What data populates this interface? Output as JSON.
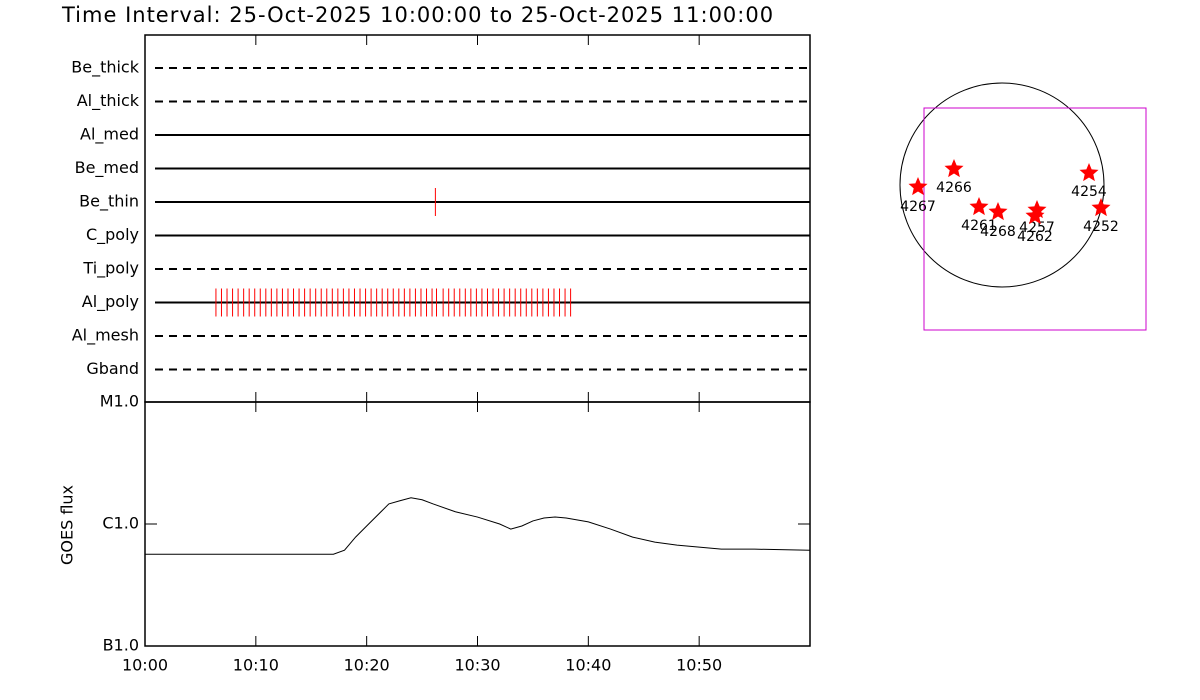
{
  "chart_data": [
    {
      "type": "timeline",
      "title": "Time Interval: 25-Oct-2025 10:00:00 to 25-Oct-2025 11:00:00",
      "xlim": [
        0,
        60
      ],
      "rows": [
        {
          "label": "Be_thick",
          "line": "dashed",
          "x": []
        },
        {
          "label": "Al_thick",
          "line": "dashed",
          "x": []
        },
        {
          "label": "Al_med",
          "line": "solid",
          "x": []
        },
        {
          "label": "Be_med",
          "line": "solid",
          "x": []
        },
        {
          "label": "Be_thin",
          "line": "solid",
          "x": [
            26.2
          ]
        },
        {
          "label": "C_poly",
          "line": "solid",
          "x": []
        },
        {
          "label": "Ti_poly",
          "line": "dashed",
          "x": []
        },
        {
          "label": "Al_poly",
          "line": "solid",
          "x": [
            6.4,
            6.9,
            7.4,
            7.9,
            8.4,
            8.9,
            9.4,
            9.9,
            10.4,
            10.9,
            11.4,
            11.9,
            12.4,
            12.9,
            13.4,
            13.9,
            14.4,
            14.9,
            15.4,
            15.9,
            16.4,
            16.9,
            17.4,
            17.9,
            18.4,
            18.9,
            19.4,
            19.9,
            20.4,
            20.9,
            21.4,
            21.9,
            22.4,
            22.9,
            23.4,
            23.9,
            24.4,
            24.9,
            25.4,
            25.9,
            26.3,
            26.9,
            27.4,
            27.9,
            28.4,
            28.9,
            29.4,
            29.9,
            30.4,
            30.9,
            31.4,
            31.9,
            32.4,
            32.9,
            33.4,
            33.9,
            34.4,
            34.9,
            35.4,
            35.9,
            36.4,
            36.9,
            37.4,
            37.9,
            38.4
          ]
        },
        {
          "label": "Al_mesh",
          "line": "dashed",
          "x": []
        },
        {
          "label": "Gband",
          "line": "dashed",
          "x": []
        }
      ],
      "mark_color": "#ff0000"
    },
    {
      "type": "line",
      "ylabel": "GOES flux",
      "yscale": "log",
      "xlim": [
        0,
        60
      ],
      "xticks": [
        {
          "value": 0,
          "label": "10:00"
        },
        {
          "value": 10,
          "label": "10:10"
        },
        {
          "value": 20,
          "label": "10:20"
        },
        {
          "value": 30,
          "label": "10:30"
        },
        {
          "value": 40,
          "label": "10:40"
        },
        {
          "value": 50,
          "label": "10:50"
        }
      ],
      "ylim": [
        1e-07,
        1e-05
      ],
      "yticks": [
        {
          "value": 1e-07,
          "label": "B1.0"
        },
        {
          "value": 1e-06,
          "label": "C1.0"
        },
        {
          "value": 1e-05,
          "label": "M1.0"
        }
      ],
      "color": "#000000",
      "x": [
        0,
        17,
        18,
        19,
        20,
        22,
        23,
        24,
        25,
        26,
        28,
        30,
        32,
        33,
        34,
        35,
        36,
        37,
        38,
        40,
        42,
        44,
        46,
        48,
        50,
        52,
        55,
        60
      ],
      "values": [
        5.65e-07,
        5.65e-07,
        6.1e-07,
        7.81e-07,
        9.63e-07,
        1.46e-06,
        1.55e-06,
        1.64e-06,
        1.58e-06,
        1.46e-06,
        1.26e-06,
        1.14e-06,
        1e-06,
        9.09e-07,
        9.63e-07,
        1.06e-06,
        1.12e-06,
        1.14e-06,
        1.12e-06,
        1.04e-06,
        9.09e-07,
        7.81e-07,
        7.1e-07,
        6.71e-07,
        6.46e-07,
        6.22e-07,
        6.22e-07,
        6.1e-07
      ]
    },
    {
      "type": "map",
      "regions": [
        "4267",
        "4266",
        "4261",
        "4268",
        "4257",
        "4262",
        "4254",
        "4252"
      ],
      "star_color": "#ff0000",
      "box_color": "#cc00cc"
    }
  ]
}
